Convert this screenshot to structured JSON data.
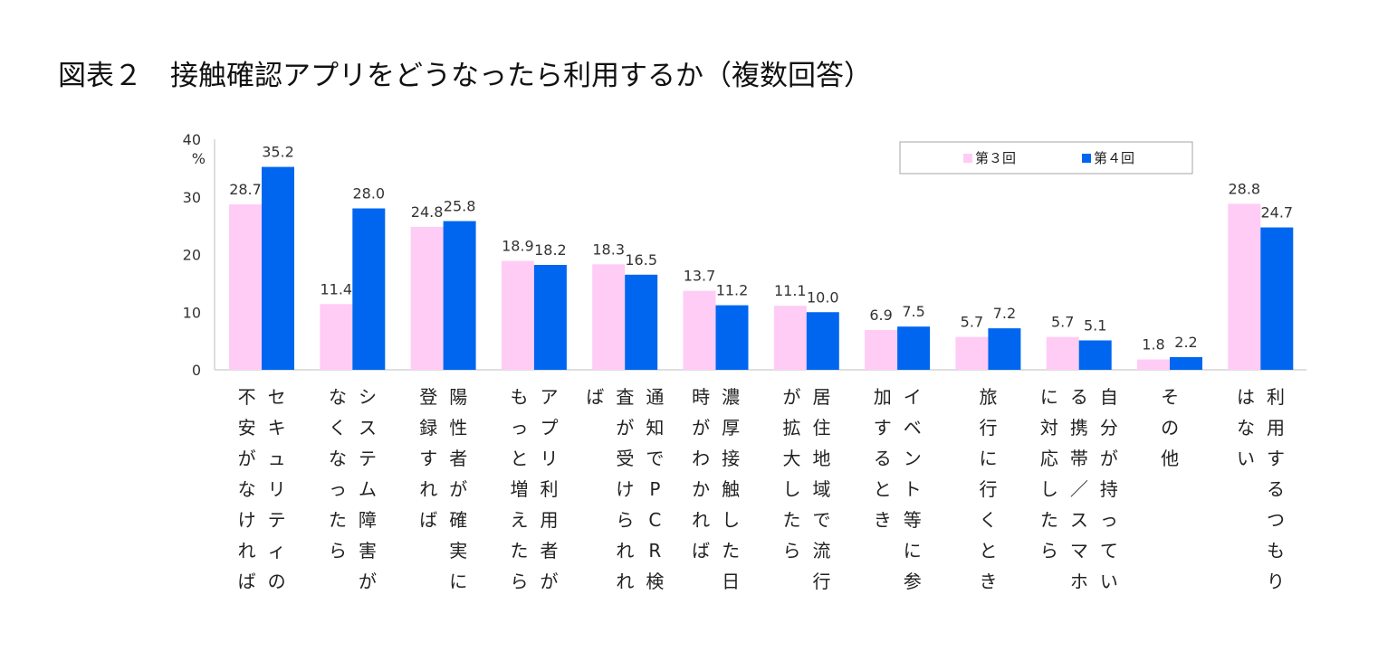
{
  "title": "図表２　接触確認アプリをどうなったら利用するか（複数回答）",
  "chart_data": {
    "type": "bar",
    "title": "図表２　接触確認アプリをどうなったら利用するか（複数回答）",
    "unit": "%",
    "ylim": [
      0,
      40
    ],
    "yticks": [
      "0",
      "10",
      "20",
      "30",
      "40"
    ],
    "grid": false,
    "legend_position": "top-right",
    "categories": [
      [
        "セキュリティの",
        "不安がなければ"
      ],
      [
        "システム障害が",
        "なくなったら"
      ],
      [
        "陽性者が確実に",
        "登録すれば"
      ],
      [
        "アプリ利用者が",
        "もっと増えたら"
      ],
      [
        "通知でPCR検",
        "査が受けられれ",
        "ば"
      ],
      [
        "濃厚接触した日",
        "時がわかれば"
      ],
      [
        "居住地域で流行",
        "が拡大したら"
      ],
      [
        "イベント等に参",
        "加するとき"
      ],
      [
        "旅行に行くとき"
      ],
      [
        "自分が持ってい",
        "る携帯／スマホ",
        "に対応したら"
      ],
      [
        "その他"
      ],
      [
        "利用するつもり",
        "はない"
      ]
    ],
    "series": [
      {
        "name": "第３回",
        "color": "#ffccf5",
        "values": [
          28.7,
          11.4,
          24.8,
          18.9,
          18.3,
          13.7,
          11.1,
          6.9,
          5.7,
          5.7,
          1.8,
          28.8
        ],
        "labels": [
          "28.7",
          "11.4",
          "24.8",
          "18.9",
          "18.3",
          "13.7",
          "11.1",
          "6.9",
          "5.7",
          "5.7",
          "1.8",
          "28.8"
        ]
      },
      {
        "name": "第４回",
        "color": "#0066f0",
        "values": [
          35.2,
          28.0,
          25.8,
          18.2,
          16.5,
          11.2,
          10.0,
          7.5,
          7.2,
          5.1,
          2.2,
          24.7
        ],
        "labels": [
          "35.2",
          "28.0",
          "25.8",
          "18.2",
          "16.5",
          "11.2",
          "10.0",
          "7.5",
          "7.2",
          "5.1",
          "2.2",
          "24.7"
        ]
      }
    ]
  }
}
